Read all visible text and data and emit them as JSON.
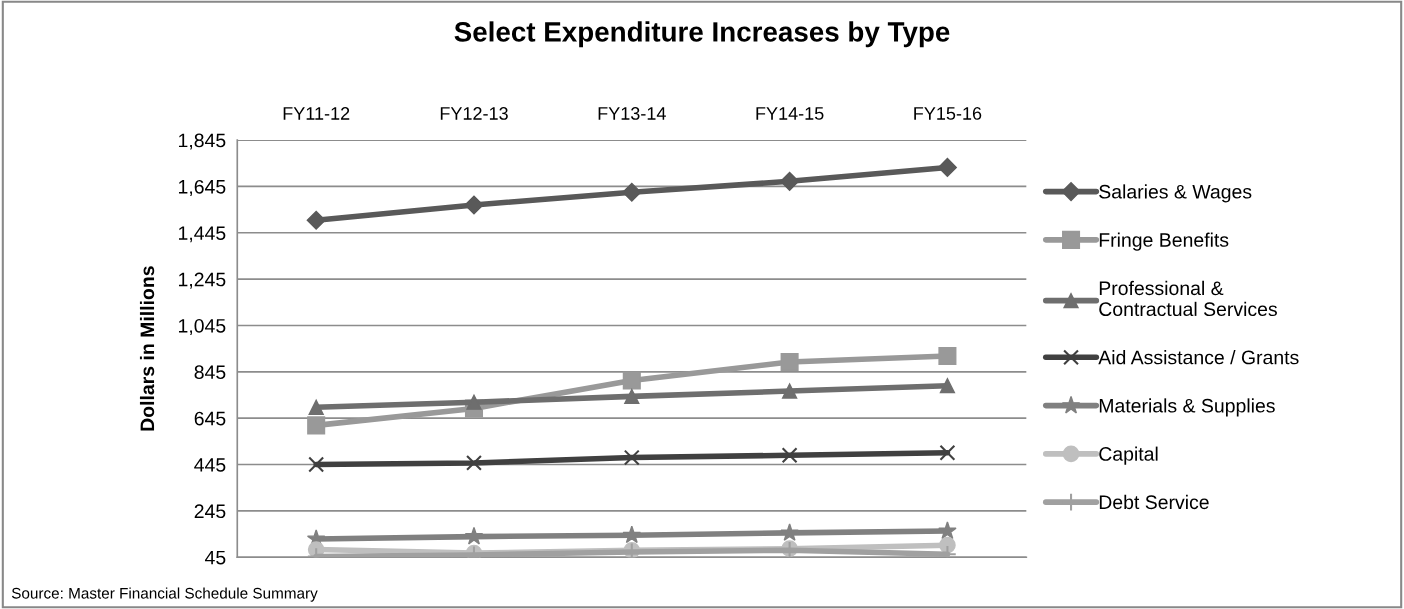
{
  "chart_data": {
    "type": "line",
    "title": "Select Expenditure Increases by Type",
    "ylabel": "Dollars in Millions",
    "categories": [
      "FY11-12",
      "FY12-13",
      "FY13-14",
      "FY14-15",
      "FY15-16"
    ],
    "series": [
      {
        "name": "Salaries & Wages",
        "color": "#595959",
        "marker": "diamond",
        "values": [
          1499,
          1565,
          1620,
          1667,
          1727
        ]
      },
      {
        "name": "Fringe Benefits",
        "color": "#999999",
        "marker": "square",
        "values": [
          614,
          687,
          808,
          887,
          913
        ]
      },
      {
        "name": "Professional & Contractual Services",
        "color": "#6e6e6e",
        "marker": "triangle",
        "values": [
          692,
          714,
          739,
          762,
          785
        ]
      },
      {
        "name": "Aid Assistance / Grants",
        "color": "#404040",
        "marker": "cross",
        "values": [
          445,
          452,
          475,
          485,
          496
        ]
      },
      {
        "name": "Materials & Supplies",
        "color": "#808080",
        "marker": "star",
        "values": [
          124,
          134,
          140,
          150,
          158
        ]
      },
      {
        "name": "Capital",
        "color": "#bfbfbf",
        "marker": "circle",
        "values": [
          78,
          63,
          75,
          82,
          97
        ]
      },
      {
        "name": "Debt Service",
        "color": "#a0a0a0",
        "marker": "cross",
        "values": [
          48,
          55,
          68,
          75,
          58
        ]
      }
    ],
    "ylim": [
      45,
      1845
    ],
    "yticks": [
      {
        "value": 45,
        "label": "45"
      },
      {
        "value": 245,
        "label": "245"
      },
      {
        "value": 445,
        "label": "445"
      },
      {
        "value": 645,
        "label": "645"
      },
      {
        "value": 845,
        "label": "845"
      },
      {
        "value": 1045,
        "label": "1,045"
      },
      {
        "value": 1245,
        "label": "1,245"
      },
      {
        "value": 1445,
        "label": "1,445"
      },
      {
        "value": 1645,
        "label": "1,645"
      },
      {
        "value": 1845,
        "label": "1,845"
      }
    ],
    "grid": "y",
    "legend": "right",
    "annotations": [
      "Source: Master Financial Schedule Summary"
    ]
  }
}
